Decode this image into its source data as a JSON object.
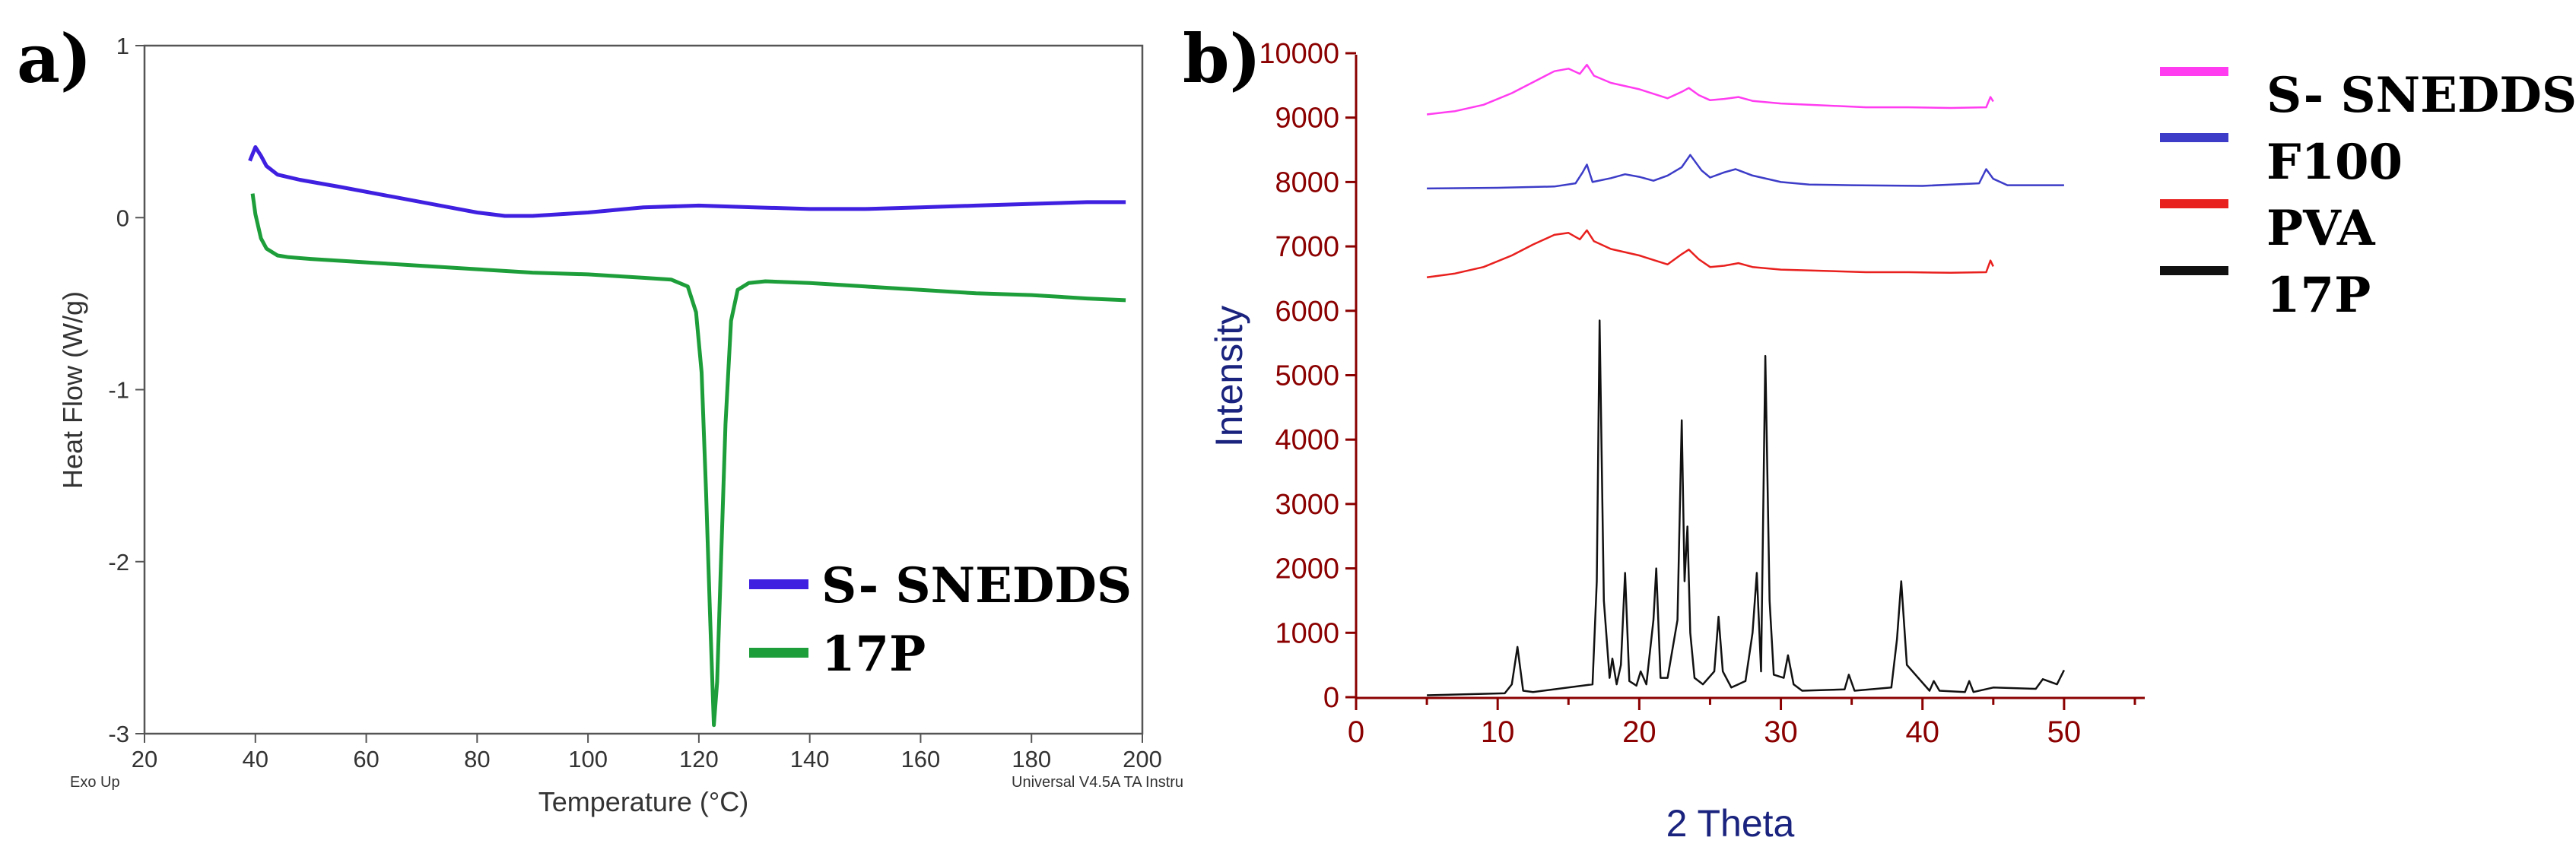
{
  "chart_data": [
    {
      "panel": "a)",
      "type": "line",
      "title": "",
      "xlabel": "Temperature (°C)",
      "ylabel": "Heat Flow (W/g)",
      "xlim": [
        20,
        200
      ],
      "ylim": [
        -3,
        1
      ],
      "xticks": [
        20,
        40,
        60,
        80,
        100,
        120,
        140,
        160,
        180,
        200
      ],
      "yticks": [
        1,
        0,
        -1,
        -2,
        -3
      ],
      "corner_left_text": "Exo Up",
      "corner_right_text": "Universal V4.5A TA Instru",
      "legend_position": "bottom-right",
      "series": [
        {
          "name": "S- SNEDDS",
          "color": "#3f1fe0",
          "x": [
            39,
            40,
            41,
            42,
            44,
            48,
            55,
            65,
            75,
            80,
            85,
            90,
            100,
            110,
            120,
            130,
            140,
            150,
            160,
            170,
            180,
            190,
            197
          ],
          "y": [
            0.33,
            0.41,
            0.36,
            0.3,
            0.25,
            0.22,
            0.18,
            0.12,
            0.06,
            0.03,
            0.01,
            0.01,
            0.03,
            0.06,
            0.07,
            0.06,
            0.05,
            0.05,
            0.06,
            0.07,
            0.08,
            0.09,
            0.09
          ]
        },
        {
          "name": "17P",
          "color": "#1e9e3a",
          "x": [
            39.5,
            40,
            41,
            42,
            43,
            44,
            46,
            50,
            60,
            70,
            80,
            90,
            100,
            110,
            115,
            118,
            119.5,
            120.5,
            121.3,
            122,
            122.7,
            123.3,
            124,
            124.8,
            125.8,
            127,
            129,
            132,
            140,
            150,
            160,
            170,
            180,
            190,
            197
          ],
          "y": [
            0.14,
            0.02,
            -0.12,
            -0.18,
            -0.2,
            -0.22,
            -0.23,
            -0.24,
            -0.26,
            -0.28,
            -0.3,
            -0.32,
            -0.33,
            -0.35,
            -0.36,
            -0.4,
            -0.55,
            -0.9,
            -1.6,
            -2.3,
            -2.95,
            -2.7,
            -2.0,
            -1.2,
            -0.6,
            -0.42,
            -0.38,
            -0.37,
            -0.38,
            -0.4,
            -0.42,
            -0.44,
            -0.45,
            -0.47,
            -0.48
          ]
        }
      ]
    },
    {
      "panel": "b)",
      "type": "line",
      "title": "",
      "xlabel": "2 Theta",
      "ylabel": "Intensity",
      "xlim": [
        0,
        55
      ],
      "ylim": [
        0,
        10000
      ],
      "xticks": [
        0,
        10,
        20,
        30,
        40,
        50
      ],
      "yticks": [
        0,
        1000,
        2000,
        3000,
        4000,
        5000,
        6000,
        7000,
        8000,
        9000,
        10000
      ],
      "legend_position": "top-right",
      "series": [
        {
          "name": "S- SNEDDS",
          "color": "#ff3cf0",
          "x": [
            5,
            7,
            9,
            11,
            12.5,
            14,
            15,
            15.8,
            16.3,
            16.8,
            18,
            20,
            22,
            23,
            23.5,
            24.2,
            25,
            26,
            27,
            28,
            30,
            33,
            36,
            39,
            42,
            44.5,
            44.8,
            45
          ],
          "y": [
            9050,
            9100,
            9200,
            9380,
            9550,
            9720,
            9760,
            9680,
            9820,
            9650,
            9540,
            9440,
            9300,
            9400,
            9460,
            9350,
            9270,
            9290,
            9320,
            9260,
            9220,
            9190,
            9160,
            9160,
            9150,
            9160,
            9320,
            9250
          ]
        },
        {
          "name": "F100",
          "color": "#3c3cc8",
          "x": [
            5,
            10,
            14,
            15.5,
            16,
            16.3,
            16.7,
            18,
            19,
            20,
            21,
            22,
            23,
            23.6,
            24.4,
            25,
            26,
            26.8,
            28,
            30,
            32,
            35,
            40,
            44,
            44.5,
            45,
            46,
            50
          ],
          "y": [
            7900,
            7910,
            7930,
            7980,
            8150,
            8270,
            8000,
            8060,
            8120,
            8080,
            8020,
            8100,
            8230,
            8420,
            8180,
            8070,
            8150,
            8200,
            8100,
            8000,
            7960,
            7950,
            7940,
            7980,
            8200,
            8050,
            7950,
            7950
          ]
        },
        {
          "name": "PVA",
          "color": "#e8201e",
          "x": [
            5,
            7,
            9,
            11,
            12.5,
            14,
            15,
            15.8,
            16.3,
            16.8,
            18,
            20,
            22,
            23,
            23.5,
            24.2,
            25,
            26,
            27,
            28,
            30,
            33,
            36,
            39,
            42,
            44.5,
            44.8,
            45
          ],
          "y": [
            6520,
            6580,
            6680,
            6860,
            7030,
            7180,
            7210,
            7110,
            7250,
            7080,
            6960,
            6860,
            6720,
            6880,
            6950,
            6800,
            6680,
            6700,
            6740,
            6680,
            6640,
            6620,
            6600,
            6600,
            6590,
            6600,
            6780,
            6690
          ]
        },
        {
          "name": "17P",
          "color": "#111111",
          "x": [
            5,
            10.5,
            11,
            11.4,
            11.8,
            12.5,
            16.7,
            17,
            17.2,
            17.5,
            17.9,
            18.1,
            18.4,
            18.7,
            19,
            19.3,
            19.8,
            20.1,
            20.5,
            21,
            21.2,
            21.5,
            22,
            22.7,
            23,
            23.2,
            23.4,
            23.6,
            23.9,
            24.5,
            25.3,
            25.6,
            25.9,
            26.5,
            27.5,
            28,
            28.3,
            28.6,
            28.9,
            29.2,
            29.5,
            30.2,
            30.5,
            30.9,
            31.5,
            34.5,
            34.8,
            35.2,
            37.8,
            38.2,
            38.5,
            38.9,
            40.5,
            40.8,
            41.2,
            43,
            43.3,
            43.6,
            45,
            48,
            48.5,
            49.5,
            50
          ],
          "y": [
            30,
            60,
            200,
            780,
            100,
            80,
            200,
            1800,
            5850,
            1500,
            300,
            600,
            200,
            500,
            1930,
            250,
            180,
            400,
            200,
            1200,
            2000,
            300,
            300,
            1200,
            4300,
            1800,
            2650,
            1000,
            300,
            200,
            400,
            1250,
            400,
            150,
            250,
            1000,
            1930,
            400,
            5300,
            1500,
            350,
            300,
            650,
            200,
            100,
            120,
            350,
            100,
            150,
            900,
            1800,
            500,
            100,
            250,
            100,
            80,
            250,
            80,
            150,
            130,
            280,
            200,
            420
          ]
        }
      ]
    }
  ]
}
